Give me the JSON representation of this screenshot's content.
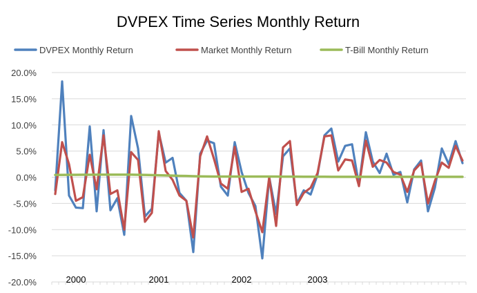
{
  "chart_data": {
    "type": "line",
    "title": "DVPEX Time Series Monthly Return",
    "xlabel": "",
    "ylabel": "",
    "ylim": [
      -0.2,
      0.2
    ],
    "yticks": [
      "20.0%",
      "15.0%",
      "10.0%",
      "5.0%",
      "0.0%",
      "-5.0%",
      "-10.0%",
      "-15.0%",
      "-20.0%"
    ],
    "ytick_values": [
      0.2,
      0.15,
      0.1,
      0.05,
      0.0,
      -0.05,
      -0.1,
      -0.15,
      -0.2
    ],
    "xtick_labels": [
      {
        "label": "2000",
        "index": 3
      },
      {
        "label": "2001",
        "index": 15
      },
      {
        "label": "2002",
        "index": 27
      },
      {
        "label": "2003",
        "index": 38
      }
    ],
    "legend_position": "top",
    "grid": true,
    "series": [
      {
        "name": "DVPEX Monthly Return",
        "color": "#4f81bd",
        "values": [
          -0.025,
          0.183,
          -0.035,
          -0.058,
          -0.059,
          0.097,
          -0.065,
          0.09,
          -0.063,
          -0.04,
          -0.11,
          0.117,
          0.055,
          -0.075,
          -0.06,
          0.085,
          0.028,
          0.037,
          -0.03,
          -0.045,
          -0.143,
          0.045,
          0.07,
          0.065,
          -0.018,
          -0.035,
          0.067,
          0.01,
          -0.03,
          -0.055,
          -0.155,
          0.0,
          -0.07,
          0.04,
          0.055,
          -0.05,
          -0.025,
          -0.033,
          0.005,
          0.08,
          0.093,
          0.03,
          0.06,
          0.063,
          -0.015,
          0.086,
          0.03,
          0.008,
          0.045,
          0.005,
          0.01,
          -0.048,
          0.015,
          0.032,
          -0.065,
          -0.02,
          0.055,
          0.025,
          0.069,
          0.027
        ]
      },
      {
        "name": "Market Monthly Return",
        "color": "#c0504d",
        "values": [
          -0.032,
          0.067,
          0.025,
          -0.045,
          -0.038,
          0.043,
          -0.023,
          0.08,
          -0.032,
          -0.025,
          -0.1,
          0.048,
          0.033,
          -0.085,
          -0.068,
          0.088,
          0.012,
          -0.005,
          -0.035,
          -0.045,
          -0.115,
          0.04,
          0.078,
          0.035,
          -0.012,
          -0.022,
          0.058,
          -0.028,
          -0.022,
          -0.065,
          -0.105,
          0.0,
          -0.093,
          0.057,
          0.069,
          -0.053,
          -0.03,
          -0.02,
          0.008,
          0.078,
          0.08,
          0.013,
          0.034,
          0.032,
          -0.017,
          0.07,
          0.02,
          0.033,
          0.028,
          0.01,
          0.005,
          -0.028,
          0.013,
          0.027,
          -0.05,
          -0.007,
          0.028,
          0.018,
          0.06,
          0.032
        ]
      },
      {
        "name": "T-Bill Monthly Return",
        "color": "#9bbb59",
        "values": [
          0.0045,
          0.0045,
          0.0046,
          0.0047,
          0.0048,
          0.0048,
          0.0049,
          0.005,
          0.005,
          0.005,
          0.005,
          0.0049,
          0.0047,
          0.0044,
          0.0041,
          0.0038,
          0.0034,
          0.0031,
          0.0027,
          0.0024,
          0.002,
          0.0017,
          0.0015,
          0.0014,
          0.0014,
          0.0014,
          0.0014,
          0.0014,
          0.0014,
          0.0014,
          0.0014,
          0.0014,
          0.0013,
          0.0012,
          0.0011,
          0.0011,
          0.001,
          0.001,
          0.001,
          0.001,
          0.0009,
          0.0009,
          0.0008,
          0.0008,
          0.0008,
          0.0008,
          0.0008,
          0.0008,
          0.0008,
          0.0008,
          0.0008,
          0.0008,
          0.0008,
          0.0008,
          0.0008,
          0.0008,
          0.0008,
          0.0008,
          0.0008,
          0.0008
        ]
      }
    ]
  }
}
